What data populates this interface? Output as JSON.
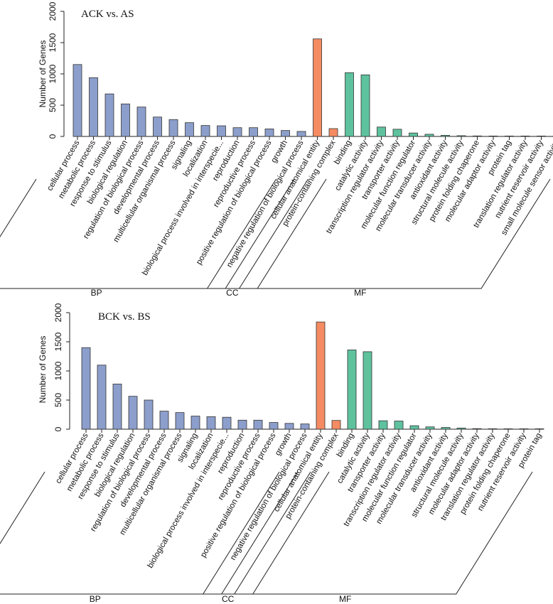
{
  "chart_data": [
    {
      "type": "bar",
      "title": "ACK  vs. AS",
      "ylabel": "Number of Genes",
      "ylim": [
        0,
        2000
      ],
      "yticks": [
        0,
        500,
        1000,
        1500,
        2000
      ],
      "categories": [
        "cellular process",
        "metabolic process",
        "response to stimulus",
        "biological regulation",
        "regulation of biological process",
        "developmental process",
        "multicellular organismal process",
        "signaling",
        "localization",
        "biological process involved in interspecie...",
        "reproduction",
        "reproductive process",
        "positive regulation of biological process",
        "growth",
        "negative regulation of biological process",
        "cellular anatomical entity",
        "protein-containing complex",
        "binding",
        "catalytic activity",
        "transcription regulator activity",
        "transporter activity",
        "molecular function regulator",
        "molecular transducer activity",
        "antioxidant activity",
        "structural molecule activity",
        "protein folding chaperone",
        "molecular adaptor activity",
        "protein tag",
        "translation regulator activity",
        "nutrient reservoir activity",
        "small molecule sensor activity"
      ],
      "values": [
        1150,
        940,
        680,
        520,
        470,
        310,
        270,
        220,
        175,
        170,
        140,
        140,
        120,
        95,
        80,
        1560,
        125,
        1020,
        985,
        150,
        115,
        55,
        35,
        18,
        12,
        8,
        5,
        5,
        3,
        2,
        2
      ],
      "groups": [
        {
          "name": "BP",
          "count": 15,
          "color": "#8c9ecb"
        },
        {
          "name": "CC",
          "count": 2,
          "color": "#f58b62"
        },
        {
          "name": "MF",
          "count": 14,
          "color": "#5ec29e"
        }
      ]
    },
    {
      "type": "bar",
      "title": "BCK  vs.  BS",
      "ylabel": "Number of Genes",
      "ylim": [
        0,
        2000
      ],
      "yticks": [
        0,
        500,
        1000,
        1500,
        2000
      ],
      "categories": [
        "cellular process",
        "metabolic process",
        "response to stimulus",
        "biological regulation",
        "regulation of biological process",
        "developmental process",
        "multicellular organismal process",
        "signaling",
        "localization",
        "biological process involved in interspecie...",
        "reproduction",
        "reproductive process",
        "positive regulation of biological process",
        "growth",
        "negative regulation of biological process",
        "cellular anatomical entity",
        "protein-containing complex",
        "binding",
        "catalytic activity",
        "transporter activity",
        "transcription regulator activity",
        "molecular function regulator",
        "molecular transducer activity",
        "antioxidant activity",
        "structural molecule activity",
        "molecular adaptor activity",
        "translation regulator activity",
        "protein folding chaperone",
        "nutrient reservoir activity",
        "protein tag"
      ],
      "values": [
        1400,
        1100,
        775,
        565,
        500,
        310,
        285,
        225,
        215,
        205,
        155,
        155,
        115,
        100,
        90,
        1840,
        150,
        1360,
        1330,
        145,
        140,
        60,
        40,
        30,
        20,
        10,
        8,
        5,
        3,
        2
      ],
      "groups": [
        {
          "name": "BP",
          "count": 15,
          "color": "#8c9ecb"
        },
        {
          "name": "CC",
          "count": 2,
          "color": "#f58b62"
        },
        {
          "name": "MF",
          "count": 13,
          "color": "#5ec29e"
        }
      ]
    }
  ]
}
